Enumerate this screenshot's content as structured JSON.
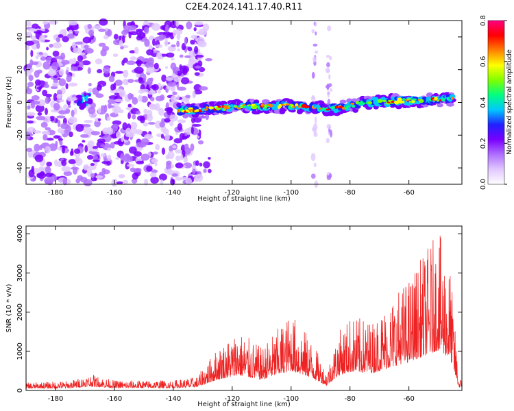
{
  "title": "C2E4.2024.141.17.40.R11",
  "chart_data": [
    {
      "type": "heatmap",
      "xlabel": "Height of straight line (km)",
      "ylabel": "Frequency (Hz)",
      "xlim": [
        -190,
        -42
      ],
      "ylim": [
        -50,
        50
      ],
      "x_ticks": [
        -180,
        -160,
        -140,
        -120,
        -100,
        -80,
        -60
      ],
      "y_ticks": [
        -40,
        -20,
        0,
        20,
        40
      ],
      "colorbar": {
        "label": "Normalized spectral amplitude",
        "range": [
          0,
          0.8
        ],
        "ticks": [
          0.0,
          0.2,
          0.4,
          0.6,
          0.8
        ],
        "colormap": [
          "#ffffff",
          "#e0c8ff",
          "#b070ff",
          "#7a00ff",
          "#2020ff",
          "#00c8ff",
          "#00ff80",
          "#80ff00",
          "#ffff00",
          "#ff8000",
          "#ff0000",
          "#ff0080"
        ]
      },
      "signal_band": [
        {
          "x": -138,
          "freq": -5
        },
        {
          "x": -120,
          "freq": -3
        },
        {
          "x": -100,
          "freq": -2
        },
        {
          "x": -85,
          "freq": -4
        },
        {
          "x": -75,
          "freq": 0
        },
        {
          "x": -60,
          "freq": 1
        },
        {
          "x": -45,
          "freq": 2
        }
      ],
      "noise_region": [
        -190,
        -130
      ],
      "grid": false
    },
    {
      "type": "line",
      "xlabel": "Height of straight line (km)",
      "ylabel": "SNR (10 * v/v)",
      "xlim": [
        -190,
        -42
      ],
      "ylim": [
        0,
        4200
      ],
      "x_ticks": [
        -180,
        -160,
        -140,
        -120,
        -100,
        -80,
        -60
      ],
      "y_ticks": [
        0,
        1000,
        2000,
        3000,
        4000
      ],
      "color": "#ee2222",
      "envelope": [
        {
          "x": -190,
          "peak": 200
        },
        {
          "x": -175,
          "peak": 250
        },
        {
          "x": -168,
          "peak": 420
        },
        {
          "x": -160,
          "peak": 260
        },
        {
          "x": -140,
          "peak": 260
        },
        {
          "x": -132,
          "peak": 350
        },
        {
          "x": -125,
          "peak": 1100
        },
        {
          "x": -118,
          "peak": 1550
        },
        {
          "x": -110,
          "peak": 1100
        },
        {
          "x": -100,
          "peak": 2000
        },
        {
          "x": -93,
          "peak": 1300
        },
        {
          "x": -88,
          "peak": 500
        },
        {
          "x": -84,
          "peak": 1500
        },
        {
          "x": -80,
          "peak": 1900
        },
        {
          "x": -72,
          "peak": 1800
        },
        {
          "x": -66,
          "peak": 2400
        },
        {
          "x": -60,
          "peak": 2900
        },
        {
          "x": -55,
          "peak": 3500
        },
        {
          "x": -50,
          "peak": 4100
        },
        {
          "x": -46,
          "peak": 3200
        },
        {
          "x": -43,
          "peak": 300
        }
      ],
      "grid": false
    }
  ]
}
